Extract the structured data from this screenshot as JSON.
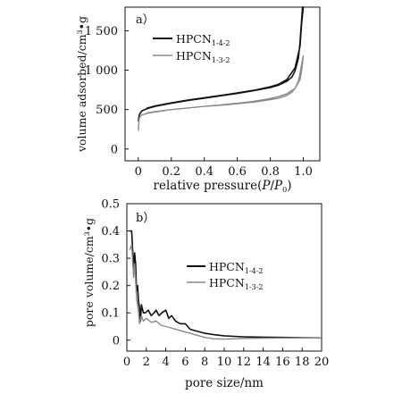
{
  "chart_data": [
    {
      "type": "line",
      "panel_label": "a）",
      "xlabel": "relative pressure",
      "xlabel_math": {
        "open": "(",
        "num": "P",
        "slash": "/",
        "den": "P",
        "den_sub": "0",
        "close": ")"
      },
      "ylabel": "volume adsorbed/cm³•g",
      "xlim": [
        -0.08,
        1.1
      ],
      "ylim": [
        -150,
        1800
      ],
      "xticks": [
        0,
        0.2,
        0.4,
        0.6,
        0.8,
        1.0
      ],
      "xticklabels": [
        "0",
        "0.2",
        "0.4",
        "0.6",
        "0.8",
        "1.0"
      ],
      "yticks": [
        0,
        500,
        1000,
        1500
      ],
      "yticklabels": [
        "0",
        "500",
        "1 000",
        "1 500"
      ],
      "legend": "top-left",
      "series": [
        {
          "name_main": "HPCN",
          "name_sub": "1-4-2",
          "color": "#111111",
          "x": [
            0.0,
            0.005,
            0.01,
            0.02,
            0.05,
            0.1,
            0.2,
            0.3,
            0.4,
            0.5,
            0.6,
            0.7,
            0.8,
            0.85,
            0.9,
            0.93,
            0.95,
            0.97,
            0.98,
            0.99,
            0.995,
            1.0,
            0.99,
            0.98,
            0.95,
            0.9,
            0.85,
            0.8,
            0.7,
            0.6,
            0.5,
            0.4,
            0.3,
            0.2,
            0.1,
            0.05
          ],
          "y": [
            350,
            420,
            450,
            480,
            510,
            540,
            580,
            615,
            645,
            675,
            705,
            740,
            780,
            810,
            860,
            910,
            990,
            1150,
            1350,
            1650,
            1800,
            1800,
            1600,
            1300,
            1030,
            880,
            820,
            790,
            745,
            710,
            680,
            650,
            620,
            585,
            545,
            515
          ]
        },
        {
          "name_main": "HPCN",
          "name_sub": "1-3-2",
          "color": "#888888",
          "x": [
            0.0,
            0.005,
            0.01,
            0.02,
            0.05,
            0.1,
            0.2,
            0.3,
            0.4,
            0.5,
            0.6,
            0.7,
            0.8,
            0.85,
            0.9,
            0.93,
            0.95,
            0.97,
            0.98,
            0.99,
            1.0,
            0.99,
            0.98,
            0.95,
            0.9,
            0.85,
            0.8,
            0.7,
            0.6,
            0.5,
            0.4,
            0.3,
            0.2,
            0.1,
            0.05
          ],
          "y": [
            230,
            380,
            410,
            430,
            450,
            470,
            500,
            520,
            540,
            555,
            575,
            595,
            625,
            645,
            680,
            720,
            770,
            860,
            950,
            1080,
            1180,
            1000,
            880,
            770,
            700,
            665,
            640,
            605,
            580,
            560,
            540,
            520,
            500,
            475,
            455
          ]
        }
      ]
    },
    {
      "type": "line",
      "panel_label": "b）",
      "xlabel": "pore size/nm",
      "ylabel": "pore volume/cm³•g",
      "xlim": [
        0,
        20
      ],
      "ylim": [
        -0.04,
        0.5
      ],
      "xticks": [
        0,
        2,
        4,
        6,
        8,
        10,
        12,
        14,
        16,
        18,
        20
      ],
      "xticklabels": [
        "0",
        "2",
        "4",
        "6",
        "8",
        "10",
        "12",
        "14",
        "16",
        "18",
        "20"
      ],
      "yticks": [
        0,
        0.1,
        0.2,
        0.3,
        0.4,
        0.5
      ],
      "yticklabels": [
        "0",
        "0.1",
        "0.2",
        "0.3",
        "0.4",
        "0.5"
      ],
      "legend": "upper-right",
      "series": [
        {
          "name_main": "HPCN",
          "name_sub": "1-4-2",
          "color": "#111111",
          "x": [
            0.3,
            0.5,
            0.7,
            0.8,
            0.9,
            1.0,
            1.1,
            1.2,
            1.3,
            1.4,
            1.5,
            1.7,
            1.9,
            2.2,
            2.5,
            2.8,
            3.0,
            3.3,
            3.6,
            4.0,
            4.3,
            4.6,
            5.0,
            5.5,
            6.0,
            6.5,
            7.0,
            7.5,
            8.0,
            9.0,
            10.0,
            11.0,
            12.0,
            14.0,
            16.0,
            18.0,
            20.0
          ],
          "y": [
            0.4,
            0.4,
            0.26,
            0.32,
            0.28,
            0.18,
            0.2,
            0.14,
            0.12,
            0.07,
            0.13,
            0.1,
            0.1,
            0.11,
            0.09,
            0.1,
            0.11,
            0.09,
            0.1,
            0.11,
            0.08,
            0.09,
            0.07,
            0.06,
            0.06,
            0.04,
            0.035,
            0.03,
            0.025,
            0.02,
            0.016,
            0.014,
            0.012,
            0.011,
            0.01,
            0.009,
            0.008
          ]
        },
        {
          "name_main": "HPCN",
          "name_sub": "1-3-2",
          "color": "#888888",
          "x": [
            0.3,
            0.5,
            0.7,
            0.8,
            0.9,
            1.0,
            1.1,
            1.2,
            1.3,
            1.5,
            1.7,
            2.0,
            2.5,
            3.0,
            3.5,
            4.0,
            4.5,
            5.0,
            5.5,
            6.0,
            7.0,
            8.0,
            9.0,
            10.0,
            12.0,
            14.0,
            16.0,
            18.0,
            20.0
          ],
          "y": [
            0.33,
            0.35,
            0.23,
            0.28,
            0.22,
            0.15,
            0.13,
            0.1,
            0.06,
            0.09,
            0.07,
            0.08,
            0.065,
            0.07,
            0.055,
            0.05,
            0.045,
            0.04,
            0.035,
            0.03,
            0.02,
            0.01,
            0.005,
            0.004,
            0.006,
            0.007,
            0.008,
            0.008,
            0.008
          ]
        }
      ]
    }
  ]
}
